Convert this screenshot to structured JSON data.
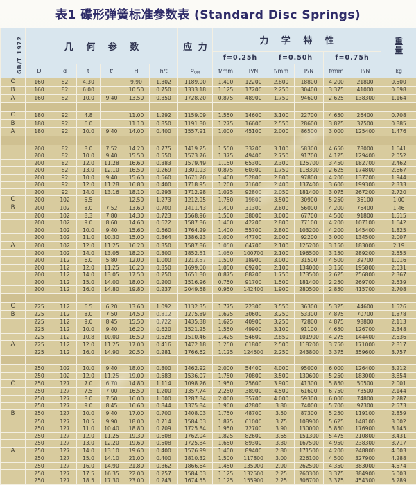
{
  "page": {
    "title": "表1 碟形弹簧标准参数表 (Standard Disc Springs)"
  },
  "colors": {
    "header_bg": "#d9e6ee",
    "body_bg": "#d8cb9e",
    "separator_bg": "#cfc091",
    "grid": "#f3efe2",
    "title_color": "#2e2b68"
  },
  "table": {
    "standard": "GB/T 1972",
    "header": {
      "geometry_group": "几 何 参 数",
      "stress_group": "应 力",
      "mechanical_group": "力 学 特 性",
      "weight_group_chars": [
        "重",
        "量"
      ],
      "deflections": [
        "f=0.25h",
        "f=0.50h",
        "f=0.75h"
      ],
      "geometry_subs": [
        "D",
        "d",
        "t",
        "t'",
        "H",
        "h/t"
      ],
      "stress_symbol": "σ",
      "stress_symbol_sub": "OM",
      "mech_pair": [
        "f/mm",
        "P/N"
      ],
      "weight_unit": "kg"
    },
    "groups": [
      {
        "rows": [
          [
            "C",
            "160",
            "82",
            "4.30",
            "",
            "9.90",
            "1.302",
            "1189.00",
            "1.400",
            "12200",
            "2.800",
            "18800",
            "4.200",
            "21800",
            "0.500"
          ],
          [
            "B",
            "160",
            "82",
            "6.00",
            "",
            "10.50",
            "0.750",
            "1333.18",
            "1.125",
            "17200",
            "2.250",
            "30400",
            "3.375",
            "41000",
            "0.698"
          ],
          [
            "A",
            "160",
            "82",
            "10.0",
            "9.40",
            "13.50",
            "0.350",
            "1728.20",
            "0.875",
            "48900",
            "1.750",
            "94600",
            "2.625",
            "138300",
            "1.164"
          ]
        ]
      },
      {
        "rows": [
          [
            "C",
            "180",
            "92",
            "4.8",
            "",
            "11.00",
            "1.292",
            "1159.09",
            "1.550",
            "14600",
            "3.100",
            "22700",
            "4.650",
            "26400",
            "0.708"
          ],
          [
            "B",
            "180",
            "92",
            "6.0",
            "",
            "11.10",
            "0.850",
            "1191.80",
            "1.275",
            "16600",
            "2.550",
            "28600",
            "3.825",
            "37500",
            "0.885"
          ],
          [
            "A",
            "180",
            "92",
            "10.0",
            "9.40",
            "14.00",
            "0.400",
            "1557.91",
            "1.000",
            "45100",
            "2.000",
            "86500",
            "3.000",
            "125400",
            "1.476"
          ]
        ]
      },
      {
        "rows": [
          [
            "",
            "200",
            "82",
            "8.0",
            "7.52",
            "14.20",
            "0.775",
            "1419.25",
            "1.550",
            "33200",
            "3.100",
            "58300",
            "4.650",
            "78000",
            "1.641"
          ],
          [
            "",
            "200",
            "82",
            "10.0",
            "9.40",
            "15.50",
            "0.550",
            "1573.76",
            "1.375",
            "49400",
            "2.750",
            "91700",
            "4.125",
            "129400",
            "2.052"
          ],
          [
            "",
            "200",
            "82",
            "12.0",
            "11.28",
            "16.60",
            "0.383",
            "1579.49",
            "1.150",
            "65300",
            "2.300",
            "125700",
            "3.450",
            "182700",
            "2.462"
          ],
          [
            "",
            "200",
            "82",
            "13.0",
            "12.10",
            "16.50",
            "0.269",
            "1301.93",
            "0.875",
            "60300",
            "1.750",
            "118300",
            "2.625",
            "174800",
            "2.667"
          ],
          [
            "",
            "200",
            "92",
            "10.0",
            "9.40",
            "15.60",
            "0.560",
            "1671.20",
            "1.400",
            "52800",
            "2.800",
            "97800",
            "4.200",
            "137700",
            "1.944"
          ],
          [
            "",
            "200",
            "92",
            "12.0",
            "11.28",
            "16.80",
            "0.400",
            "1718.95",
            "1.200",
            "71600",
            "2.400",
            "137400",
            "3.600",
            "199300",
            "2.333"
          ],
          [
            "",
            "200",
            "92",
            "14.0",
            "13.16",
            "18.10",
            "0.293",
            "1712.98",
            "1.025",
            "92800",
            "2.050",
            "181400",
            "3.075",
            "267200",
            "2.720"
          ],
          [
            "C",
            "200",
            "102",
            "5.5",
            "",
            "12.50",
            "1.273",
            "1212.95",
            "1.750",
            "19800",
            "3.500",
            "30900",
            "5.250",
            "36100",
            "1.00"
          ],
          [
            "B",
            "200",
            "102",
            "8.0",
            "7.52",
            "13.60",
            "0.700",
            "1411.43",
            "1.400",
            "31300",
            "2.800",
            "56000",
            "4.200",
            "76400",
            "1.46"
          ],
          [
            "",
            "200",
            "102",
            "8.3",
            "7.80",
            "14.30",
            "0.723",
            "1568.96",
            "1.500",
            "38000",
            "3.000",
            "67700",
            "4.500",
            "91800",
            "1.515"
          ],
          [
            "",
            "200",
            "102",
            "9.0",
            "8.60",
            "14.60",
            "0.622",
            "1587.86",
            "1.400",
            "42200",
            "2.800",
            "77100",
            "4.200",
            "107100",
            "1.642"
          ],
          [
            "",
            "200",
            "102",
            "10.0",
            "9.40",
            "15.60",
            "0.560",
            "1764.29",
            "1.400",
            "55700",
            "2.800",
            "103200",
            "4.200",
            "145400",
            "1.825"
          ],
          [
            "",
            "200",
            "102",
            "11.0",
            "10.30",
            "15.00",
            "0.364",
            "1386.23",
            "1.000",
            "47700",
            "2.000",
            "92200",
            "3.000",
            "134500",
            "2.007"
          ],
          [
            "A",
            "200",
            "102",
            "12.0",
            "11.25",
            "16.20",
            "0.350",
            "1587.86",
            "1.050",
            "64700",
            "2.100",
            "125200",
            "3.150",
            "183000",
            "2.19"
          ],
          [
            "",
            "200",
            "102",
            "14.0",
            "13.05",
            "18.20",
            "0.300",
            "1852.51",
            "1.050",
            "100700",
            "2.100",
            "196500",
            "3.150",
            "289200",
            "2.555"
          ],
          [
            "",
            "200",
            "112",
            "6.0",
            "5.80",
            "12.00",
            "1.000",
            "1213.57",
            "1.500",
            "18900",
            "3.000",
            "31500",
            "4.500",
            "39700",
            "1.016"
          ],
          [
            "",
            "200",
            "112",
            "12.0",
            "11.25",
            "16.20",
            "0.350",
            "1699.00",
            "1.050",
            "69200",
            "2.100",
            "134000",
            "3.150",
            "195800",
            "2.031"
          ],
          [
            "",
            "200",
            "112",
            "14.0",
            "13.05",
            "17.50",
            "0.250",
            "1651.80",
            "0.875",
            "88200",
            "1.750",
            "173500",
            "2.625",
            "256800",
            "2.367"
          ],
          [
            "",
            "200",
            "112",
            "15.0",
            "14.00",
            "18.00",
            "0.200",
            "1516.96",
            "0.750",
            "91700",
            "1.500",
            "181400",
            "2.250",
            "269700",
            "2.539"
          ],
          [
            "",
            "200",
            "112",
            "16.0",
            "14.80",
            "19.80",
            "0.237",
            "2049.58",
            "0.950",
            "142400",
            "1.900",
            "280500",
            "2.850",
            "415700",
            "2.708"
          ]
        ]
      },
      {
        "rows": [
          [
            "C",
            "225",
            "112",
            "6.5",
            "6.20",
            "13.60",
            "1.092",
            "1132.35",
            "1.775",
            "22300",
            "3.550",
            "36300",
            "5.325",
            "44600",
            "1.526"
          ],
          [
            "B",
            "225",
            "112",
            "8.0",
            "7.50",
            "14.50",
            "0.812",
            "1275.89",
            "1.625",
            "30600",
            "3.250",
            "53300",
            "4.875",
            "70700",
            "1.878"
          ],
          [
            "",
            "225",
            "112",
            "9.0",
            "8.45",
            "15.50",
            "0.722",
            "1435.38",
            "1.625",
            "40900",
            "3.250",
            "72800",
            "4.875",
            "98800",
            "2.113"
          ],
          [
            "",
            "225",
            "112",
            "10.0",
            "9.40",
            "16.20",
            "0.620",
            "1521.25",
            "1.550",
            "49900",
            "3.100",
            "91100",
            "4.650",
            "126700",
            "2.348"
          ],
          [
            "",
            "225",
            "112",
            "10.8",
            "10.00",
            "16.50",
            "0.528",
            "1510.46",
            "1.425",
            "54600",
            "2.850",
            "101900",
            "4.275",
            "144400",
            "2.536"
          ],
          [
            "A",
            "225",
            "112",
            "12.0",
            "11.25",
            "17.00",
            "0.416",
            "1472.18",
            "1.250",
            "61800",
            "2.500",
            "118200",
            "3.750",
            "171000",
            "2.817"
          ],
          [
            "",
            "225",
            "112",
            "16.0",
            "14.90",
            "20.50",
            "0.281",
            "1766.62",
            "1.125",
            "124500",
            "2.250",
            "243800",
            "3.375",
            "359600",
            "3.757"
          ]
        ]
      },
      {
        "rows": [
          [
            "",
            "250",
            "102",
            "10.0",
            "9.40",
            "18.00",
            "0.800",
            "1462.92",
            "2.000",
            "54400",
            "4.000",
            "95000",
            "6.000",
            "126400",
            "3.212"
          ],
          [
            "",
            "250",
            "102",
            "12.0",
            "11.25",
            "19.00",
            "0.583",
            "1536.07",
            "1.750",
            "70800",
            "3.500",
            "130600",
            "5.250",
            "183000",
            "3.854"
          ],
          [
            "C",
            "250",
            "127",
            "7.0",
            "6.70",
            "14.80",
            "1.114",
            "1098.26",
            "1.950",
            "25600",
            "3.900",
            "41300",
            "5.850",
            "50500",
            "2.001"
          ],
          [
            "",
            "250",
            "127",
            "7.5",
            "7.00",
            "16.50",
            "1.200",
            "1357.74",
            "2.250",
            "38900",
            "4.500",
            "61600",
            "6.750",
            "73500",
            "2.144"
          ],
          [
            "",
            "250",
            "127",
            "8.0",
            "7.50",
            "16.00",
            "1.000",
            "1287.34",
            "2.000",
            "35700",
            "4.000",
            "59300",
            "6.000",
            "74800",
            "2.287"
          ],
          [
            "",
            "250",
            "127",
            "9.0",
            "8.45",
            "16.60",
            "0.844",
            "1375.84",
            "1.900",
            "42800",
            "3.80",
            "74000",
            "5.700",
            "97300",
            "2.573"
          ],
          [
            "B",
            "250",
            "127",
            "10.0",
            "9.40",
            "17.00",
            "0.700",
            "1408.03",
            "1.750",
            "48700",
            "3.50",
            "87300",
            "5.250",
            "119100",
            "2.859"
          ],
          [
            "",
            "250",
            "127",
            "10.5",
            "9.90",
            "18.00",
            "0.714",
            "1584.03",
            "1.875",
            "61000",
            "3.75",
            "108900",
            "5.625",
            "148100",
            "3.002"
          ],
          [
            "",
            "250",
            "127",
            "11.0",
            "10.40",
            "18.80",
            "0.709",
            "1725.84",
            "1.950",
            "72700",
            "3.90",
            "130000",
            "5.850",
            "176900",
            "3.145"
          ],
          [
            "",
            "250",
            "127",
            "12.0",
            "11.25",
            "19.30",
            "0.608",
            "1762.04",
            "1.825",
            "82600",
            "3.65",
            "151300",
            "5.475",
            "210800",
            "3.431"
          ],
          [
            "",
            "250",
            "127",
            "13.0",
            "12.20",
            "19.60",
            "0.508",
            "1725.84",
            "1.650",
            "89300",
            "3.30",
            "167500",
            "4.950",
            "238300",
            "3.717"
          ],
          [
            "A",
            "250",
            "127",
            "14.0",
            "13.10",
            "19.60",
            "0.400",
            "1576.99",
            "1.400",
            "89400",
            "2.80",
            "171500",
            "4.200",
            "248800",
            "4.003"
          ],
          [
            "",
            "250",
            "127",
            "15.0",
            "14.10",
            "21.00",
            "0.400",
            "1810.32",
            "1.500",
            "117800",
            "3.00",
            "226100",
            "4.500",
            "327900",
            "4.288"
          ],
          [
            "",
            "250",
            "127",
            "16.0",
            "14.90",
            "21.80",
            "0.362",
            "1866.64",
            "1.450",
            "135900",
            "2.90",
            "262500",
            "4.350",
            "383000",
            "4.574"
          ],
          [
            "",
            "250",
            "127",
            "17.5",
            "16.35",
            "22.00",
            "0.257",
            "1584.03",
            "1.125",
            "132500",
            "2.25",
            "260300",
            "3.375",
            "384900",
            "5.003"
          ],
          [
            "",
            "250",
            "127",
            "18.5",
            "17.30",
            "23.00",
            "0.243",
            "1674.55",
            "1.125",
            "155900",
            "2.25",
            "306700",
            "3.375",
            "454300",
            "5.289"
          ]
        ]
      }
    ]
  }
}
